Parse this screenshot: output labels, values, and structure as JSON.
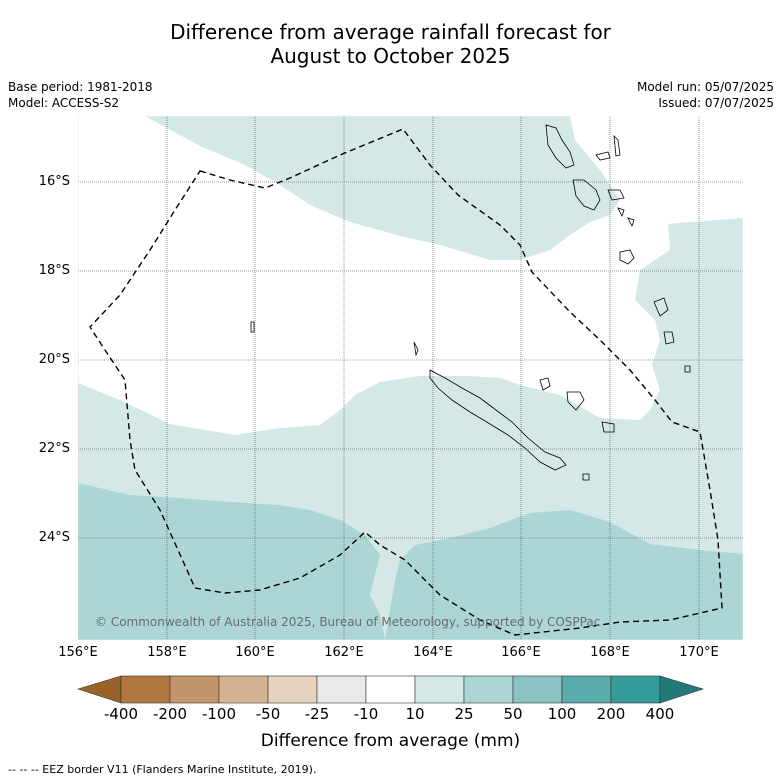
{
  "header": {
    "title_line1": "Difference from average rainfall forecast for",
    "title_line2": "August to October 2025"
  },
  "meta_left": {
    "base_period": "Base period: 1981-2018",
    "model": "Model: ACCESS-S2"
  },
  "meta_right": {
    "model_run": "Model run: 05/07/2025",
    "issued": "Issued: 07/07/2025"
  },
  "map": {
    "lat_ticks": [
      "16°S",
      "18°S",
      "20°S",
      "22°S",
      "24°S"
    ],
    "lon_ticks": [
      "156°E",
      "158°E",
      "160°E",
      "162°E",
      "164°E",
      "166°E",
      "168°E",
      "170°E"
    ],
    "copyright": "© Commonwealth of Australia 2025, Bureau of Meteorology, supported by COSPPac",
    "colors": {
      "band_10_25": "#d4e9e7",
      "band_25_50": "#acd6d6",
      "no_change": "#ffffff",
      "eez_border": "#000000",
      "gridline": "#444444"
    }
  },
  "colorbar": {
    "labels": [
      "-400",
      "-200",
      "-100",
      "-50",
      "-25",
      "-10",
      "10",
      "25",
      "50",
      "100",
      "200",
      "400"
    ],
    "colors": [
      "#9a6229",
      "#b07840",
      "#c4956a",
      "#d4b392",
      "#e6d2bf",
      "#e9e9e7",
      "#ffffff",
      "#d4e9e7",
      "#acd6d6",
      "#8bc3c3",
      "#5aacac",
      "#349b98",
      "#217a78"
    ],
    "title": "Difference from average (mm)"
  },
  "footnote": "--  --  -- EEZ border V11 (Flanders Marine Institute, 2019)."
}
